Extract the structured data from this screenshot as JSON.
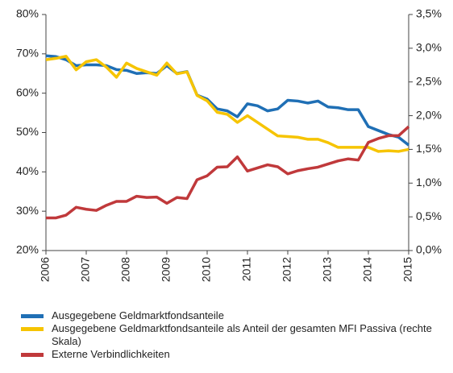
{
  "chart_data": {
    "type": "line",
    "x": [
      2006,
      2006.25,
      2006.5,
      2006.75,
      2007,
      2007.25,
      2007.5,
      2007.75,
      2008,
      2008.25,
      2008.5,
      2008.75,
      2009,
      2009.25,
      2009.5,
      2009.75,
      2010,
      2010.25,
      2010.5,
      2010.75,
      2011,
      2011.25,
      2011.5,
      2011.75,
      2012,
      2012.25,
      2012.5,
      2012.75,
      2013,
      2013.25,
      2013.5,
      2013.75,
      2014,
      2014.25,
      2014.5,
      2014.75,
      2015
    ],
    "series": [
      {
        "name": "Ausgegebene Geldmarktfondsanteile",
        "color": "#1f6fb5",
        "values": [
          69.5,
          69.3,
          68.5,
          67.0,
          67.2,
          67.2,
          67.0,
          66.0,
          65.8,
          65.0,
          65.2,
          65.0,
          67.0,
          65.0,
          65.5,
          59.5,
          58.5,
          56.0,
          55.5,
          54.0,
          57.3,
          56.8,
          55.5,
          56.0,
          58.2,
          58.0,
          57.5,
          58.0,
          56.5,
          56.3,
          55.8,
          55.8,
          51.5,
          50.5,
          49.5,
          48.8,
          46.8
        ]
      },
      {
        "name": "Ausgegebene Geldmarktfondsanteile als Anteil der gesamten MFI Passiva (rechte Skala)",
        "color": "#f6c400",
        "axis": "y2",
        "values": [
          2.83,
          2.85,
          2.88,
          2.68,
          2.8,
          2.83,
          2.72,
          2.57,
          2.78,
          2.7,
          2.65,
          2.6,
          2.78,
          2.62,
          2.65,
          2.3,
          2.22,
          2.05,
          2.02,
          1.9,
          2.0,
          1.9,
          1.8,
          1.7,
          1.69,
          1.68,
          1.65,
          1.65,
          1.6,
          1.53,
          1.53,
          1.53,
          1.53,
          1.47,
          1.48,
          1.47,
          1.5
        ]
      },
      {
        "name": "Externe Verbindlichkeiten",
        "color": "#c0393b",
        "values": [
          28.3,
          28.3,
          29.0,
          31.0,
          30.5,
          30.2,
          31.5,
          32.5,
          32.5,
          33.8,
          33.5,
          33.6,
          32.0,
          33.5,
          33.2,
          38.0,
          39.0,
          41.2,
          41.3,
          43.8,
          40.2,
          41.0,
          41.8,
          41.3,
          39.5,
          40.3,
          40.8,
          41.2,
          42.0,
          42.8,
          43.3,
          43.0,
          47.5,
          48.5,
          49.2,
          49.2,
          51.5
        ]
      }
    ],
    "xlim": [
      2006,
      2015
    ],
    "xticks": [
      2006,
      2007,
      2008,
      2009,
      2010,
      2011,
      2012,
      2013,
      2014,
      2015
    ],
    "ylim": [
      20,
      80
    ],
    "yticks": [
      {
        "value": 20,
        "label": "20%"
      },
      {
        "value": 30,
        "label": "30%"
      },
      {
        "value": 40,
        "label": "40%"
      },
      {
        "value": 50,
        "label": "50%"
      },
      {
        "value": 60,
        "label": "60%"
      },
      {
        "value": 70,
        "label": "70%"
      },
      {
        "value": 80,
        "label": "80%"
      }
    ],
    "y2lim": [
      0,
      3.5
    ],
    "y2ticks": [
      {
        "value": 0,
        "label": "0,0%"
      },
      {
        "value": 0.5,
        "label": "0,5%"
      },
      {
        "value": 1,
        "label": "1,0%"
      },
      {
        "value": 1.5,
        "label": "1,5%"
      },
      {
        "value": 2,
        "label": "2,0%"
      },
      {
        "value": 2.5,
        "label": "2,5%"
      },
      {
        "value": 3,
        "label": "3,0%"
      },
      {
        "value": 3.5,
        "label": "3,5%"
      }
    ],
    "grid": false
  }
}
